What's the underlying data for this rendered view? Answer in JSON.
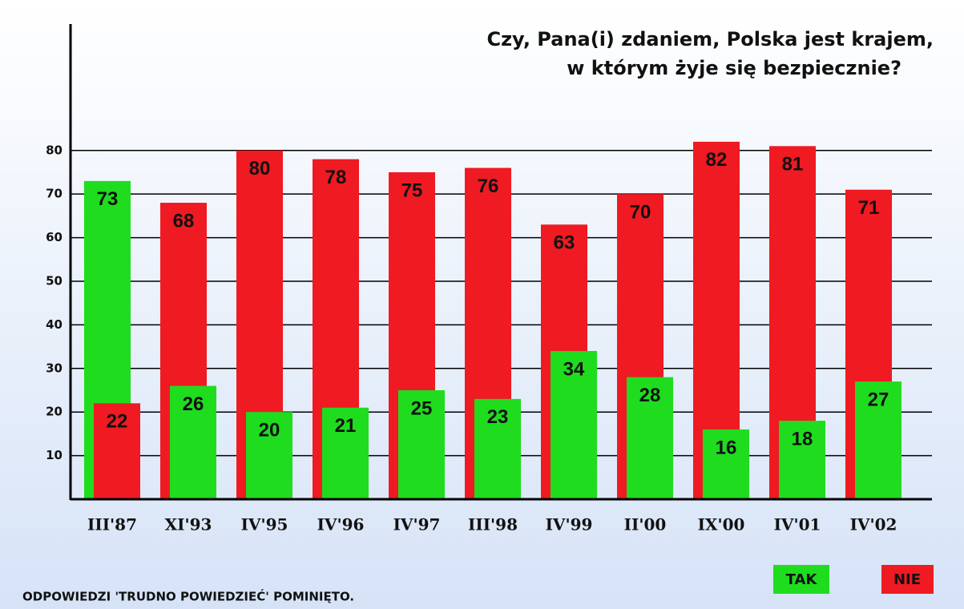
{
  "chart_data": {
    "type": "bar",
    "title": [
      "Czy, Pana(i) zdaniem, Polska jest krajem,",
      "w którym żyje się bezpiecznie?"
    ],
    "note": "ODPOWIEDZI 'TRUDNO POWIEDZIEĆ' POMINIĘTO.",
    "categories": [
      "III'87",
      "XI'93",
      "IV'95",
      "IV'96",
      "IV'97",
      "III'98",
      "IV'99",
      "II'00",
      "IX'00",
      "IV'01",
      "IV'02"
    ],
    "series": [
      {
        "name": "TAK",
        "color": "#1fdc1f",
        "values": [
          73,
          26,
          20,
          21,
          25,
          23,
          34,
          28,
          16,
          18,
          27
        ]
      },
      {
        "name": "NIE",
        "color": "#ef1a22",
        "values": [
          22,
          68,
          80,
          78,
          75,
          76,
          63,
          70,
          82,
          81,
          71
        ]
      }
    ],
    "ylim": [
      0,
      109
    ],
    "yticks": [
      10,
      20,
      30,
      40,
      50,
      60,
      70,
      80
    ],
    "grid": true,
    "legend": "bottom-right"
  }
}
